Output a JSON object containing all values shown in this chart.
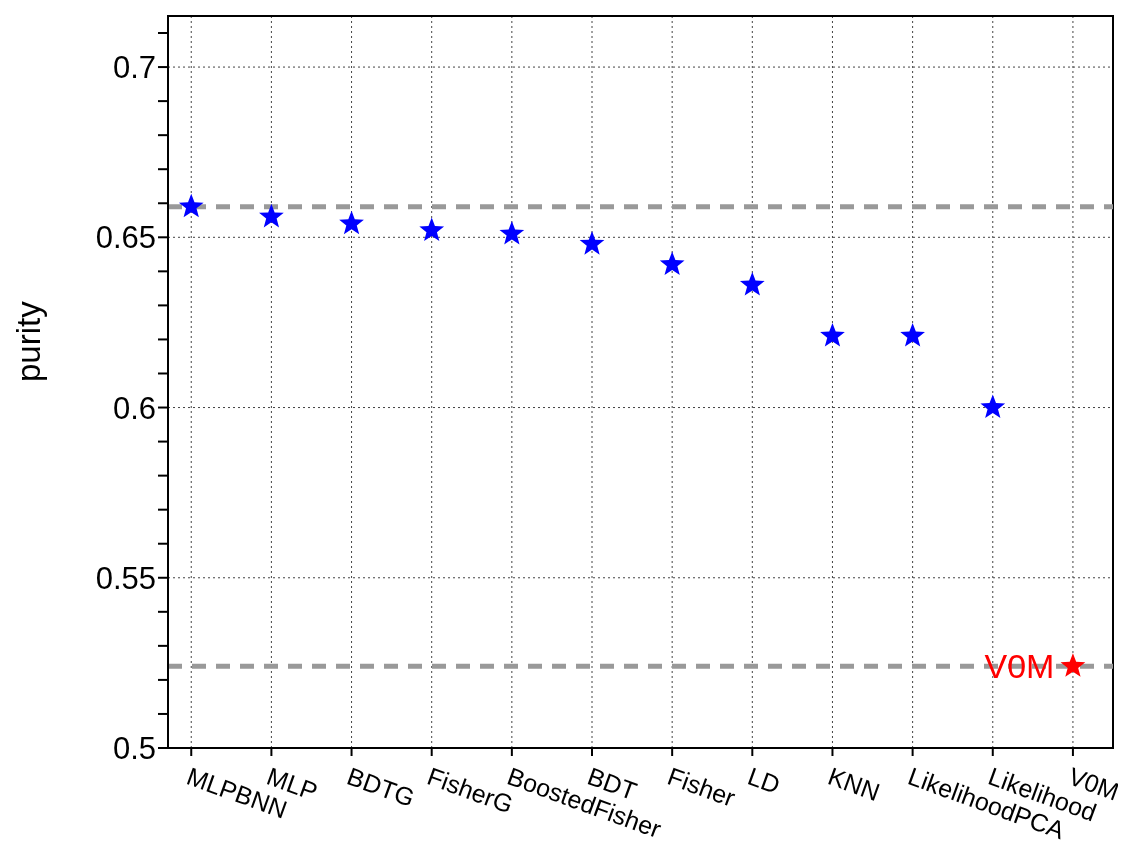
{
  "chart_data": {
    "type": "scatter",
    "ylabel": "purity",
    "marker": "star",
    "grid": true,
    "legend": false,
    "categories": [
      "MLPBNN",
      "MLP",
      "BDTG",
      "FisherG",
      "BoostedFisher",
      "BDT",
      "Fisher",
      "LD",
      "KNN",
      "LikelihoodPCA",
      "Likelihood",
      "V0M"
    ],
    "series": [
      {
        "color": "#0000ff",
        "values": [
          0.659,
          0.656,
          0.654,
          0.652,
          0.651,
          0.648,
          0.642,
          0.636,
          0.621,
          0.621,
          0.6,
          null
        ]
      },
      {
        "name": "V0M",
        "color": "#ff0000",
        "values": [
          null,
          null,
          null,
          null,
          null,
          null,
          null,
          null,
          null,
          null,
          null,
          0.524
        ]
      }
    ],
    "ylim": [
      0.5,
      0.715
    ],
    "yticks": [
      0.5,
      {
        "value": 0.51,
        "label": null
      },
      {
        "value": 0.52,
        "label": null
      },
      {
        "value": 0.53,
        "label": null
      },
      {
        "value": 0.54,
        "label": null
      },
      0.55,
      {
        "value": 0.56,
        "label": null
      },
      {
        "value": 0.57,
        "label": null
      },
      {
        "value": 0.58,
        "label": null
      },
      {
        "value": 0.59,
        "label": null
      },
      0.6,
      {
        "value": 0.61,
        "label": null
      },
      {
        "value": 0.62,
        "label": null
      },
      {
        "value": 0.63,
        "label": null
      },
      {
        "value": 0.64,
        "label": null
      },
      0.65,
      {
        "value": 0.66,
        "label": null
      },
      {
        "value": 0.67,
        "label": null
      },
      {
        "value": 0.68,
        "label": null
      },
      {
        "value": 0.69,
        "label": null
      },
      0.7,
      {
        "value": 0.71,
        "label": null
      }
    ],
    "ref_lines": [
      {
        "axis": "y",
        "value": 0.659,
        "color": "#999999",
        "line_style": "dashed"
      },
      {
        "axis": "y",
        "value": 0.524,
        "color": "#999999",
        "line_style": "dashed"
      }
    ]
  }
}
